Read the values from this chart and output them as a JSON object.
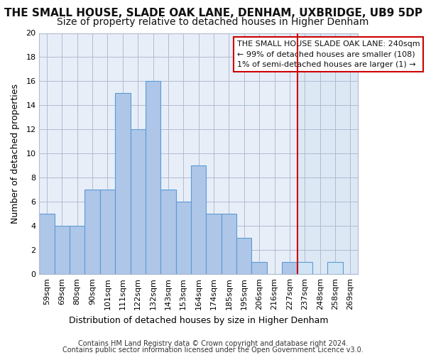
{
  "title": "THE SMALL HOUSE, SLADE OAK LANE, DENHAM, UXBRIDGE, UB9 5DP",
  "subtitle": "Size of property relative to detached houses in Higher Denham",
  "xlabel": "Distribution of detached houses by size in Higher Denham",
  "ylabel": "Number of detached properties",
  "footer_line1": "Contains HM Land Registry data © Crown copyright and database right 2024.",
  "footer_line2": "Contains public sector information licensed under the Open Government Licence v3.0.",
  "categories": [
    "59sqm",
    "69sqm",
    "80sqm",
    "90sqm",
    "101sqm",
    "111sqm",
    "122sqm",
    "132sqm",
    "143sqm",
    "153sqm",
    "164sqm",
    "174sqm",
    "185sqm",
    "195sqm",
    "206sqm",
    "216sqm",
    "227sqm",
    "237sqm",
    "248sqm",
    "258sqm",
    "269sqm"
  ],
  "values": [
    5,
    4,
    4,
    7,
    7,
    15,
    12,
    16,
    7,
    6,
    9,
    5,
    5,
    3,
    1,
    0,
    1,
    1,
    0,
    1,
    0
  ],
  "bar_color": "#aec6e8",
  "bar_edge_color": "#5b9bd5",
  "bar_color_right": "#d0e4f5",
  "highlight_color": "#cc0000",
  "highlight_bar_index": 17,
  "legend_text_line1": "THE SMALL HOUSE SLADE OAK LANE: 240sqm",
  "legend_text_line2": "← 99% of detached houses are smaller (108)",
  "legend_text_line3": "1% of semi-detached houses are larger (1) →",
  "legend_box_color": "#cc0000",
  "ylim": [
    0,
    20
  ],
  "yticks": [
    0,
    2,
    4,
    6,
    8,
    10,
    12,
    14,
    16,
    18,
    20
  ],
  "background_color": "#ffffff",
  "plot_bg_color": "#e8eef8",
  "plot_bg_right_color": "#dde8f5",
  "grid_color": "#b0bcd0",
  "title_fontsize": 11,
  "subtitle_fontsize": 10,
  "axis_label_fontsize": 9,
  "tick_fontsize": 8,
  "footer_fontsize": 7,
  "legend_fontsize": 8
}
